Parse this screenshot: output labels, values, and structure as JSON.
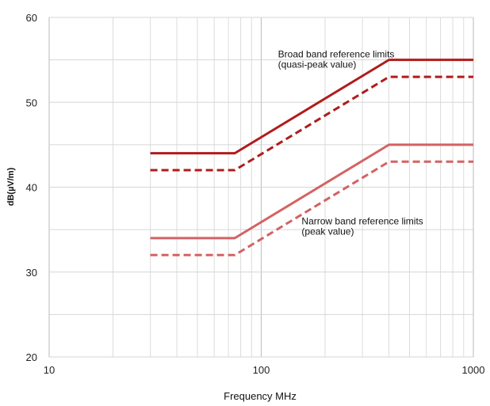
{
  "chart_data": {
    "type": "line",
    "title": "",
    "xlabel": "Frequency MHz",
    "ylabel": "dB(µV/m)",
    "xscale": "log",
    "xlim": [
      10,
      1000
    ],
    "ylim": [
      20,
      60
    ],
    "x_ticks": [
      "10",
      "100",
      "1000"
    ],
    "y_ticks": [
      "20",
      "30",
      "40",
      "50",
      "60"
    ],
    "grid": true,
    "series": [
      {
        "key": "broad_qp",
        "color": "#b01c1c",
        "style": "solid",
        "points": [
          [
            30,
            44
          ],
          [
            75,
            44
          ],
          [
            400,
            55
          ],
          [
            1000,
            55
          ]
        ]
      },
      {
        "key": "broad_avg",
        "color": "#b01c1c",
        "style": "dashed",
        "points": [
          [
            30,
            42
          ],
          [
            75,
            42
          ],
          [
            400,
            53
          ],
          [
            1000,
            53
          ]
        ]
      },
      {
        "key": "narrow_peak",
        "color": "#d46262",
        "style": "solid",
        "points": [
          [
            30,
            34
          ],
          [
            75,
            34
          ],
          [
            400,
            45
          ],
          [
            1000,
            45
          ]
        ]
      },
      {
        "key": "narrow_avg",
        "color": "#d46262",
        "style": "dashed",
        "points": [
          [
            30,
            32
          ],
          [
            75,
            32
          ],
          [
            400,
            43
          ],
          [
            1000,
            43
          ]
        ]
      }
    ],
    "annotations": [
      {
        "lines": [
          "Broad band reference limits",
          "(quasi-peak value)"
        ],
        "at": [
          120,
          55.3
        ]
      },
      {
        "lines": [
          "Narrow band reference limits",
          "(peak value)"
        ],
        "at": [
          155,
          35.6
        ]
      }
    ]
  }
}
